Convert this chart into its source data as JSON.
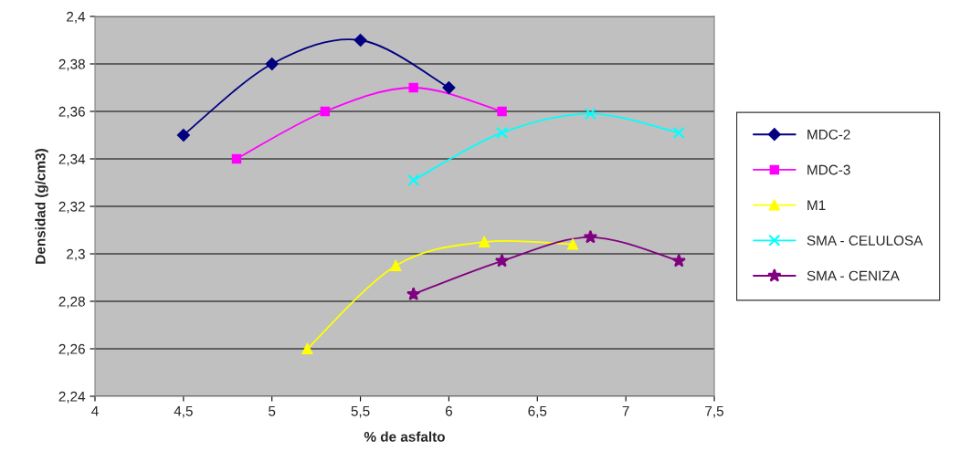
{
  "chart_data": {
    "type": "line",
    "xlabel": "% de asfalto",
    "ylabel": "Densidad (g/cm3)",
    "xlim": [
      4,
      7.5
    ],
    "xticks": [
      4,
      {
        "value": 4.5,
        "label": "4,5"
      },
      5,
      {
        "value": 5.5,
        "label": "5,5"
      },
      6,
      {
        "value": 6.5,
        "label": "6,5"
      },
      7,
      {
        "value": 7.5,
        "label": "7,5"
      }
    ],
    "ylim": [
      2.24,
      2.4
    ],
    "yticks": [
      {
        "value": 2.24,
        "label": "2,24"
      },
      {
        "value": 2.26,
        "label": "2,26"
      },
      {
        "value": 2.28,
        "label": "2,28"
      },
      {
        "value": 2.3,
        "label": "2,3"
      },
      {
        "value": 2.32,
        "label": "2,32"
      },
      {
        "value": 2.34,
        "label": "2,34"
      },
      {
        "value": 2.36,
        "label": "2,36"
      },
      {
        "value": 2.38,
        "label": "2,38"
      },
      {
        "value": 2.4,
        "label": "2,4"
      }
    ],
    "grid": "y",
    "legend": "right",
    "series": [
      {
        "name": "MDC-2",
        "color": "#000080",
        "marker": "diamond",
        "x": [
          4.5,
          5,
          5.5,
          6
        ],
        "values": [
          2.35,
          2.38,
          2.39,
          2.37
        ]
      },
      {
        "name": "MDC-3",
        "color": "#ff00ff",
        "marker": "square",
        "x": [
          4.8,
          5.3,
          5.8,
          6.3
        ],
        "values": [
          2.34,
          2.36,
          2.37,
          2.36
        ]
      },
      {
        "name": "M1",
        "color": "#ffff00",
        "marker": "triangle",
        "x": [
          5.2,
          5.7,
          6.2,
          6.7
        ],
        "values": [
          2.26,
          2.295,
          2.305,
          2.304
        ]
      },
      {
        "name": "SMA - CELULOSA",
        "color": "#00ffff",
        "marker": "cross",
        "x": [
          5.8,
          6.3,
          6.8,
          7.3
        ],
        "values": [
          2.331,
          2.351,
          2.359,
          2.351
        ]
      },
      {
        "name": "SMA - CENIZA",
        "color": "#800080",
        "marker": "star",
        "x": [
          5.8,
          6.3,
          6.8,
          7.3
        ],
        "values": [
          2.283,
          2.297,
          2.307,
          2.297
        ]
      }
    ]
  }
}
